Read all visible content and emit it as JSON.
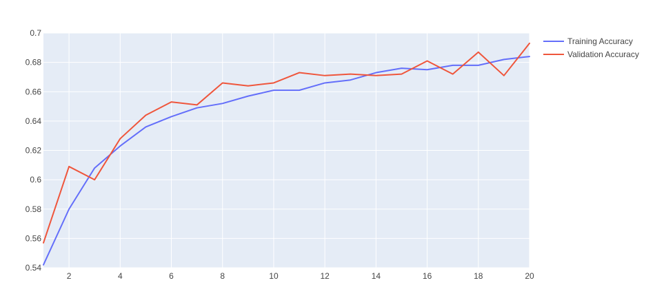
{
  "chart_data": {
    "type": "line",
    "title": "",
    "xlabel": "",
    "ylabel": "",
    "x": [
      1,
      2,
      3,
      4,
      5,
      6,
      7,
      8,
      9,
      10,
      11,
      12,
      13,
      14,
      15,
      16,
      17,
      18,
      19,
      20
    ],
    "xlim": [
      1,
      20
    ],
    "ylim": [
      0.54,
      0.7
    ],
    "xticks": [
      2,
      4,
      6,
      8,
      10,
      12,
      14,
      16,
      18,
      20
    ],
    "xtick_labels": [
      "2",
      "4",
      "6",
      "8",
      "10",
      "12",
      "14",
      "16",
      "18",
      "20"
    ],
    "yticks": [
      0.54,
      0.56,
      0.58,
      0.6,
      0.62,
      0.64,
      0.66,
      0.68,
      0.7
    ],
    "ytick_labels": [
      "0.54",
      "0.56",
      "0.58",
      "0.6",
      "0.62",
      "0.64",
      "0.66",
      "0.68",
      "0.7"
    ],
    "grid": true,
    "legend_position": "top-right",
    "series": [
      {
        "name": "Training Accuracy",
        "color": "#636efa",
        "values": [
          0.542,
          0.58,
          0.608,
          0.623,
          0.636,
          0.643,
          0.649,
          0.652,
          0.657,
          0.661,
          0.661,
          0.666,
          0.668,
          0.673,
          0.676,
          0.675,
          0.678,
          0.678,
          0.682,
          0.684
        ]
      },
      {
        "name": "Validation Accuracy",
        "color": "#ef553b",
        "values": [
          0.557,
          0.609,
          0.6,
          0.628,
          0.644,
          0.653,
          0.651,
          0.666,
          0.664,
          0.666,
          0.673,
          0.671,
          0.672,
          0.671,
          0.672,
          0.681,
          0.672,
          0.687,
          0.671,
          0.693
        ]
      }
    ],
    "plot_bgcolor": "#e5ecf6",
    "grid_color": "#ffffff"
  }
}
